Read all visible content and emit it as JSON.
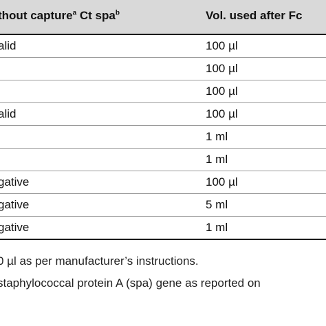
{
  "table": {
    "headers": {
      "col1_text": "thout capture",
      "col1_sup": "a",
      "col1_text2": " Ct spa",
      "col1_sup2": "b",
      "col2_text": "Vol. used after Fc"
    },
    "rows": [
      {
        "c1": "alid",
        "c2": "100 µl"
      },
      {
        "c1": "",
        "c2": "100 µl"
      },
      {
        "c1": "",
        "c2": "100 µl"
      },
      {
        "c1": "alid",
        "c2": "100 µl"
      },
      {
        "c1": "",
        "c2": "1 ml"
      },
      {
        "c1": "",
        "c2": "1 ml"
      },
      {
        "c1": "gative",
        "c2": "100 µl"
      },
      {
        "c1": "gative",
        "c2": "5 ml"
      },
      {
        "c1": "gative",
        "c2": "1 ml"
      }
    ]
  },
  "footnotes": [
    "0 µl as per manufacturer’s instructions.",
    "staphylococcal protein A (spa) gene as reported on"
  ]
}
